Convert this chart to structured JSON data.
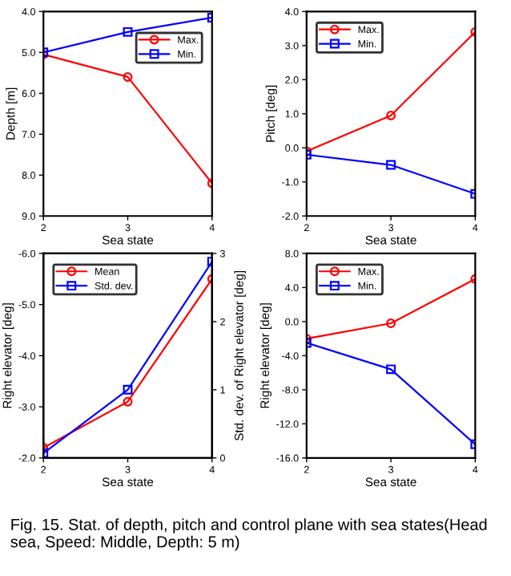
{
  "chart_data": [
    {
      "type": "line",
      "xlabel": "Sea state",
      "ylabel": "Depth [m]",
      "x": [
        2,
        3,
        4
      ],
      "xlim": [
        2,
        4
      ],
      "xticks": [
        2,
        3,
        4
      ],
      "ylim": [
        9,
        4
      ],
      "yticks": [
        {
          "value": 4,
          "label": "4.0"
        },
        {
          "value": 5,
          "label": "5.0"
        },
        {
          "value": 6,
          "label": "6.0"
        },
        {
          "value": 7,
          "label": "7.0"
        },
        {
          "value": 8,
          "label": "8.0"
        },
        {
          "value": 9,
          "label": "9.0"
        }
      ],
      "legend": "top right",
      "grid": false,
      "series": [
        {
          "name": "Max.",
          "color": "#ff0000",
          "marker": "circle",
          "values": [
            5.05,
            5.6,
            8.2
          ]
        },
        {
          "name": "Min.",
          "color": "#0000ff",
          "marker": "square",
          "values": [
            5.0,
            4.5,
            4.15
          ]
        }
      ]
    },
    {
      "type": "line",
      "xlabel": "Sea state",
      "ylabel": "Pitch [deg]",
      "x": [
        2,
        3,
        4
      ],
      "xlim": [
        2,
        4
      ],
      "xticks": [
        2,
        3,
        4
      ],
      "ylim": [
        -2,
        4
      ],
      "yticks": [
        {
          "value": -2,
          "label": "-2.0"
        },
        {
          "value": -1,
          "label": "-1.0"
        },
        {
          "value": 0,
          "label": "0.0"
        },
        {
          "value": 1,
          "label": "1.0"
        },
        {
          "value": 2,
          "label": "2.0"
        },
        {
          "value": 3,
          "label": "3.0"
        },
        {
          "value": 4,
          "label": "4.0"
        }
      ],
      "legend": "top left",
      "grid": false,
      "series": [
        {
          "name": "Max.",
          "color": "#ff0000",
          "marker": "circle",
          "values": [
            -0.1,
            0.95,
            3.4
          ]
        },
        {
          "name": "Min.",
          "color": "#0000ff",
          "marker": "square",
          "values": [
            -0.2,
            -0.5,
            -1.35
          ]
        }
      ]
    },
    {
      "type": "line",
      "xlabel": "Sea state",
      "ylabel": "Right elevator [deg]",
      "y2label": "Std. dev. of Right elevator [deg]",
      "x": [
        2,
        3,
        4
      ],
      "xlim": [
        2,
        4
      ],
      "xticks": [
        2,
        3,
        4
      ],
      "ylim": [
        -2,
        -6
      ],
      "yticks": [
        {
          "value": -2,
          "label": "-2.0"
        },
        {
          "value": -3,
          "label": "-3.0"
        },
        {
          "value": -4,
          "label": "-4.0"
        },
        {
          "value": -5,
          "label": "-5.0"
        },
        {
          "value": -6,
          "label": "-6.0"
        }
      ],
      "y2lim": [
        0,
        3
      ],
      "y2ticks": [
        0,
        1,
        2,
        3
      ],
      "legend": "top left",
      "grid": false,
      "series": [
        {
          "name": "Mean",
          "color": "#ff0000",
          "marker": "circle",
          "values": [
            -2.2,
            -3.1,
            -5.5
          ]
        },
        {
          "name": "Std. dev.",
          "color": "#0000ff",
          "marker": "square",
          "axis": "y2",
          "values": [
            0.07,
            1.0,
            2.88
          ]
        }
      ]
    },
    {
      "type": "line",
      "xlabel": "Sea state",
      "ylabel": "Right elevator [deg]",
      "x": [
        2,
        3,
        4
      ],
      "xlim": [
        2,
        4
      ],
      "xticks": [
        2,
        3,
        4
      ],
      "ylim": [
        -16,
        8
      ],
      "yticks": [
        {
          "value": -16,
          "label": "-16.0"
        },
        {
          "value": -12,
          "label": "-12.0"
        },
        {
          "value": -8,
          "label": "-8.0"
        },
        {
          "value": -4,
          "label": "-4.0"
        },
        {
          "value": 0,
          "label": "0.0"
        },
        {
          "value": 4,
          "label": "4.0"
        },
        {
          "value": 8,
          "label": "8.0"
        }
      ],
      "legend": "top left",
      "grid": false,
      "series": [
        {
          "name": "Max.",
          "color": "#ff0000",
          "marker": "circle",
          "values": [
            -2.0,
            -0.2,
            5.0
          ]
        },
        {
          "name": "Min.",
          "color": "#0000ff",
          "marker": "square",
          "values": [
            -2.5,
            -5.6,
            -14.4
          ]
        }
      ],
      "annotations": [
        "Fig. 15. Stat. of depth, pitch and control plane with sea states(Head sea, Speed: Middle, Depth: 5 m)"
      ]
    }
  ]
}
